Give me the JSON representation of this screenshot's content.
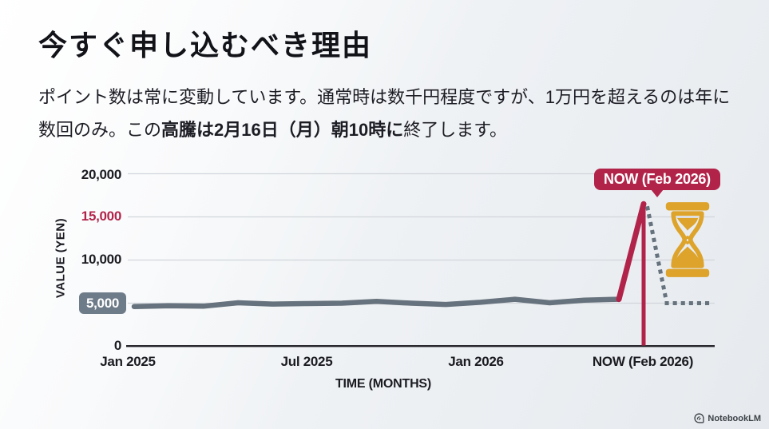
{
  "slide": {
    "title": "今すぐ申し込むべき理由",
    "body_part1": "ポイント数は常に変動しています。通常時は数千円程度ですが、1万円を超えるのは年に数回のみ。この",
    "body_bold": "高騰は2月16日（月）朝10時に",
    "body_part2": "終了します。"
  },
  "branding": {
    "name": "NotebookLM"
  },
  "chart_data": {
    "type": "line",
    "title": "",
    "xlabel": "TIME (MONTHS)",
    "ylabel": "VALUE (YEN)",
    "x_tick_labels": [
      "Jan 2025",
      "Jul 2025",
      "Jan 2026",
      "NOW (Feb 2026)"
    ],
    "y_ticks": [
      0,
      5000,
      10000,
      15000,
      20000
    ],
    "y_tick_labels": [
      "0",
      "5,000",
      "10,000",
      "15,000",
      "20,000"
    ],
    "ylim": [
      0,
      20000
    ],
    "grid": "horizontal",
    "highlighted_y_tick": "5,000",
    "accent_y_tick": "15,000",
    "annotation_label": "NOW (Feb 2026)",
    "annotation_icon": "hourglass-icon",
    "series": [
      {
        "name": "Historical value (Jan 2025 - Feb 2026)",
        "style": "solid",
        "color": "#66727d",
        "values": [
          4600,
          4700,
          4650,
          5050,
          4900,
          4950,
          5000,
          5200,
          5000,
          4850,
          5100,
          5450,
          5050,
          5350,
          5450
        ]
      },
      {
        "name": "Current spike at NOW (Feb 2026)",
        "style": "solid",
        "color": "#b2234a",
        "peak_value": 16500
      },
      {
        "name": "Projected decline after deadline",
        "style": "dotted",
        "color": "#66727d",
        "values": [
          16000,
          5000,
          5000
        ]
      }
    ],
    "colors": {
      "accent": "#b2234a",
      "line": "#66727d",
      "gold": "#dda32b",
      "badge_bg": "#6e7b88",
      "gridline": "#d2d6db",
      "axis": "#25252b"
    }
  }
}
